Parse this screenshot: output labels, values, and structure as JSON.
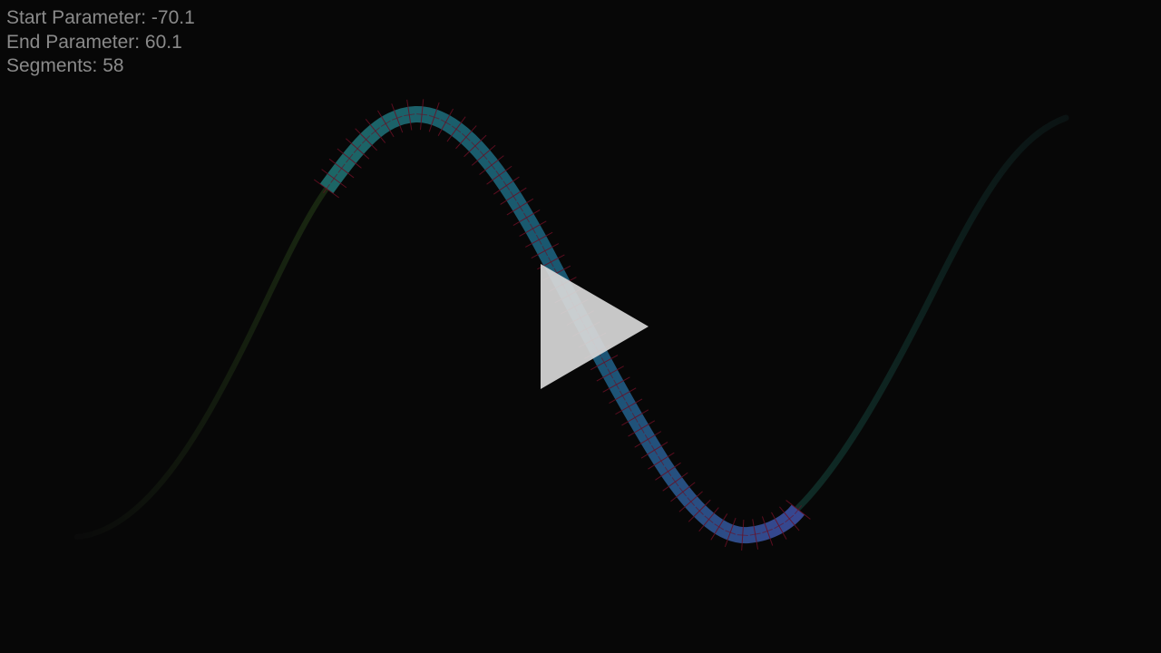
{
  "hud": {
    "start_label": "Start Parameter: ",
    "start_value": "-70.1",
    "end_label": "End Parameter: ",
    "end_value": "60.1",
    "segments_label": "Segments: ",
    "segments_value": "58"
  },
  "curve": {
    "segments": 58,
    "faded_left_color": "#1a2a10",
    "faded_right_color": "#0f2a24",
    "active_start_color": "#1e6e6e",
    "active_end_color": "#3a4f9a",
    "tick_color": "#6a0f24"
  },
  "overlay": {
    "play_icon": "play-icon",
    "play_color": "#d8d8d8"
  }
}
